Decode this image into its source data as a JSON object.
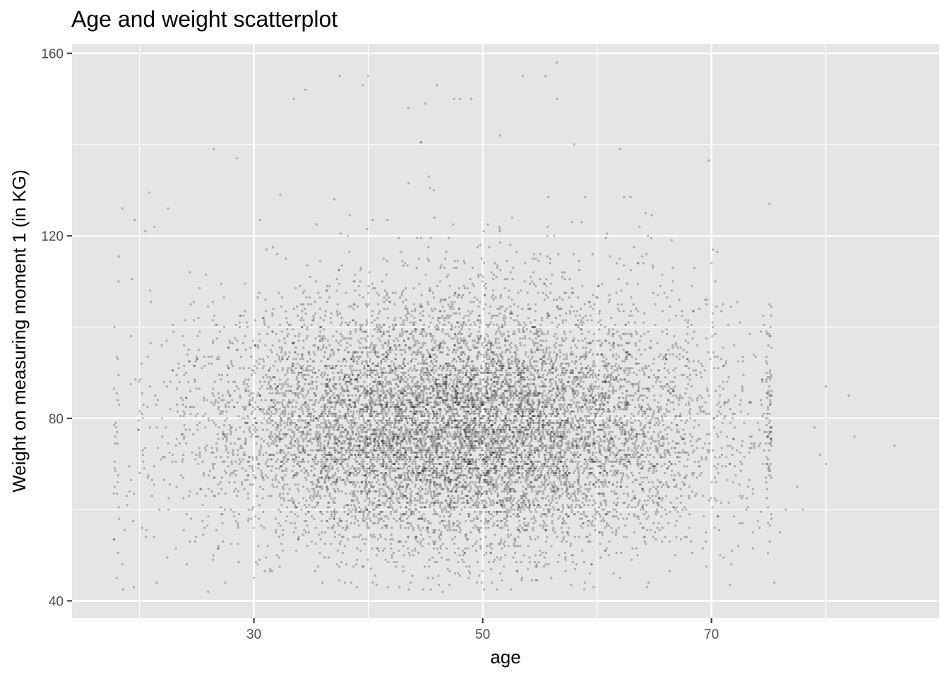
{
  "chart_data": {
    "type": "scatter",
    "title": "Age and weight scatterplot",
    "xlabel": "age",
    "ylabel": "Weight on measuring moment 1 (in KG)",
    "xlim": [
      14.1,
      89.9
    ],
    "ylim": [
      36.2,
      162.1
    ],
    "x_ticks": [
      30,
      50,
      70
    ],
    "y_ticks": [
      40,
      80,
      120,
      160
    ],
    "x_tick_labels": [
      "30",
      "50",
      "70"
    ],
    "y_tick_labels": [
      "40",
      "80",
      "120",
      "160"
    ],
    "x_minor_ticks": [
      20,
      40,
      60,
      80
    ],
    "y_minor_ticks": [
      60,
      100,
      140
    ],
    "grid": true,
    "legend": "none",
    "colors": {
      "panel": "#e5e5e5",
      "grid": "#ffffff",
      "point": "#000000",
      "tick_text": "#4d4d4d"
    },
    "point_alpha": 0.25,
    "point_sampling": {
      "count": 11000,
      "age_range": [
        18,
        75
      ],
      "age_center": 48,
      "age_sd": 11,
      "weight_center": 77,
      "weight_sd": 13,
      "weight_rounding": 0.5
    },
    "points": [
      [
        18.5,
        126
      ],
      [
        20.5,
        121
      ],
      [
        22.5,
        126
      ],
      [
        26.5,
        139
      ],
      [
        28.5,
        137
      ],
      [
        33.5,
        150
      ],
      [
        34.5,
        152
      ],
      [
        37.5,
        155
      ],
      [
        39.5,
        153
      ],
      [
        40,
        155
      ],
      [
        43.5,
        148
      ],
      [
        45,
        149
      ],
      [
        46,
        153
      ],
      [
        47.5,
        150
      ],
      [
        48,
        150
      ],
      [
        49,
        150
      ],
      [
        51.5,
        142
      ],
      [
        53.5,
        155
      ],
      [
        55.5,
        155
      ],
      [
        56.5,
        158
      ],
      [
        56.5,
        150
      ],
      [
        58,
        140
      ],
      [
        62,
        139
      ],
      [
        71,
        105
      ],
      [
        30,
        45
      ],
      [
        32,
        50
      ],
      [
        36,
        44
      ],
      [
        46.5,
        42
      ],
      [
        56,
        45
      ],
      [
        64.5,
        44
      ],
      [
        75.5,
        44
      ],
      [
        18,
        45
      ],
      [
        18.5,
        48
      ],
      [
        19.5,
        43
      ],
      [
        21.5,
        44
      ],
      [
        26,
        42
      ],
      [
        27.5,
        44
      ],
      [
        63,
        49
      ],
      [
        69.5,
        53
      ],
      [
        72.5,
        57
      ],
      [
        76,
        55
      ],
      [
        76.5,
        60
      ],
      [
        77.5,
        65
      ],
      [
        78,
        60
      ],
      [
        79,
        78
      ],
      [
        79.5,
        72
      ],
      [
        80,
        70
      ],
      [
        80,
        87
      ],
      [
        82,
        85
      ],
      [
        82.5,
        76
      ],
      [
        86,
        74
      ]
    ]
  }
}
